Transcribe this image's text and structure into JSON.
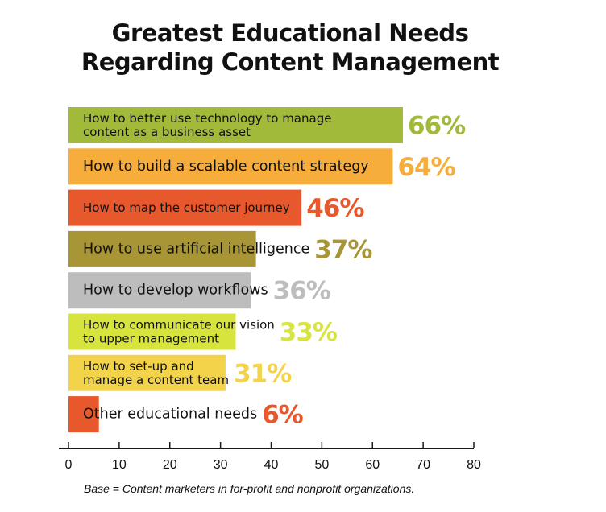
{
  "chart_data": {
    "type": "bar",
    "orientation": "horizontal",
    "title_lines": [
      "Greatest Educational Needs",
      "Regarding Content Management"
    ],
    "categories": [
      [
        "How to better use technology to manage",
        "content as a business asset"
      ],
      [
        "How to build a scalable content strategy"
      ],
      [
        "How to map the customer journey"
      ],
      [
        "How to use artificial intelligence"
      ],
      [
        "How to develop workflows"
      ],
      [
        "How to communicate our vision",
        "to upper management"
      ],
      [
        "How to set-up and",
        "manage a content team"
      ],
      [
        "Other educational needs"
      ]
    ],
    "values": [
      66,
      64,
      46,
      37,
      36,
      33,
      31,
      6
    ],
    "value_labels": [
      "66%",
      "64%",
      "46%",
      "37%",
      "36%",
      "33%",
      "31%",
      "6%"
    ],
    "colors": [
      "#a2ba3a",
      "#f6ad3c",
      "#e8582d",
      "#a89536",
      "#bdbdbd",
      "#d8e43e",
      "#f2d34a",
      "#e8582d"
    ],
    "label_colors": [
      "#a2ba3a",
      "#f6ad3c",
      "#e8582d",
      "#a89536",
      "#bdbdbd",
      "#d8e43e",
      "#f2d34a",
      "#e8582d"
    ],
    "xlim": [
      0,
      80
    ],
    "xticks": [
      0,
      10,
      20,
      30,
      40,
      50,
      60,
      70,
      80
    ],
    "xlabel": "",
    "ylabel": "",
    "legend": "none",
    "grid": false
  },
  "footnote": "Base = Content marketers in for-profit and nonprofit organizations."
}
